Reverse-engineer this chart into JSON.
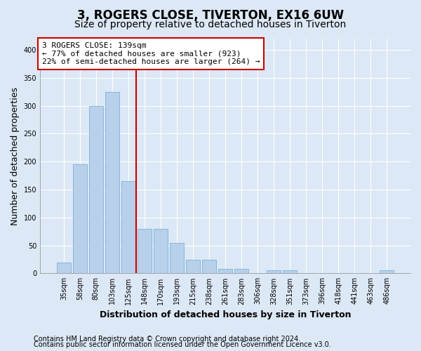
{
  "title": "3, ROGERS CLOSE, TIVERTON, EX16 6UW",
  "subtitle": "Size of property relative to detached houses in Tiverton",
  "xlabel": "Distribution of detached houses by size in Tiverton",
  "ylabel": "Number of detached properties",
  "categories": [
    "35sqm",
    "58sqm",
    "80sqm",
    "103sqm",
    "125sqm",
    "148sqm",
    "170sqm",
    "193sqm",
    "215sqm",
    "238sqm",
    "261sqm",
    "283sqm",
    "306sqm",
    "328sqm",
    "351sqm",
    "373sqm",
    "396sqm",
    "418sqm",
    "441sqm",
    "463sqm",
    "486sqm"
  ],
  "values": [
    20,
    195,
    300,
    325,
    165,
    80,
    80,
    55,
    25,
    25,
    8,
    8,
    0,
    5,
    5,
    0,
    0,
    0,
    0,
    0,
    5
  ],
  "bar_color": "#b8d0ea",
  "bar_edgecolor": "#6aaad4",
  "bar_width": 0.85,
  "vline_x": 4.5,
  "vline_color": "#cc0000",
  "annotation_text": "3 ROGERS CLOSE: 139sqm\n← 77% of detached houses are smaller (923)\n22% of semi-detached houses are larger (264) →",
  "annotation_box_color": "#ffffff",
  "annotation_box_edgecolor": "#cc0000",
  "ylim": [
    0,
    420
  ],
  "yticks": [
    0,
    50,
    100,
    150,
    200,
    250,
    300,
    350,
    400
  ],
  "footer1": "Contains HM Land Registry data © Crown copyright and database right 2024.",
  "footer2": "Contains public sector information licensed under the Open Government Licence v3.0.",
  "bg_color": "#dce8f5",
  "plot_bg_color": "#dce8f5",
  "grid_color": "#ffffff",
  "title_fontsize": 12,
  "subtitle_fontsize": 10,
  "axis_label_fontsize": 9,
  "tick_fontsize": 7,
  "annotation_fontsize": 8,
  "footer_fontsize": 7
}
